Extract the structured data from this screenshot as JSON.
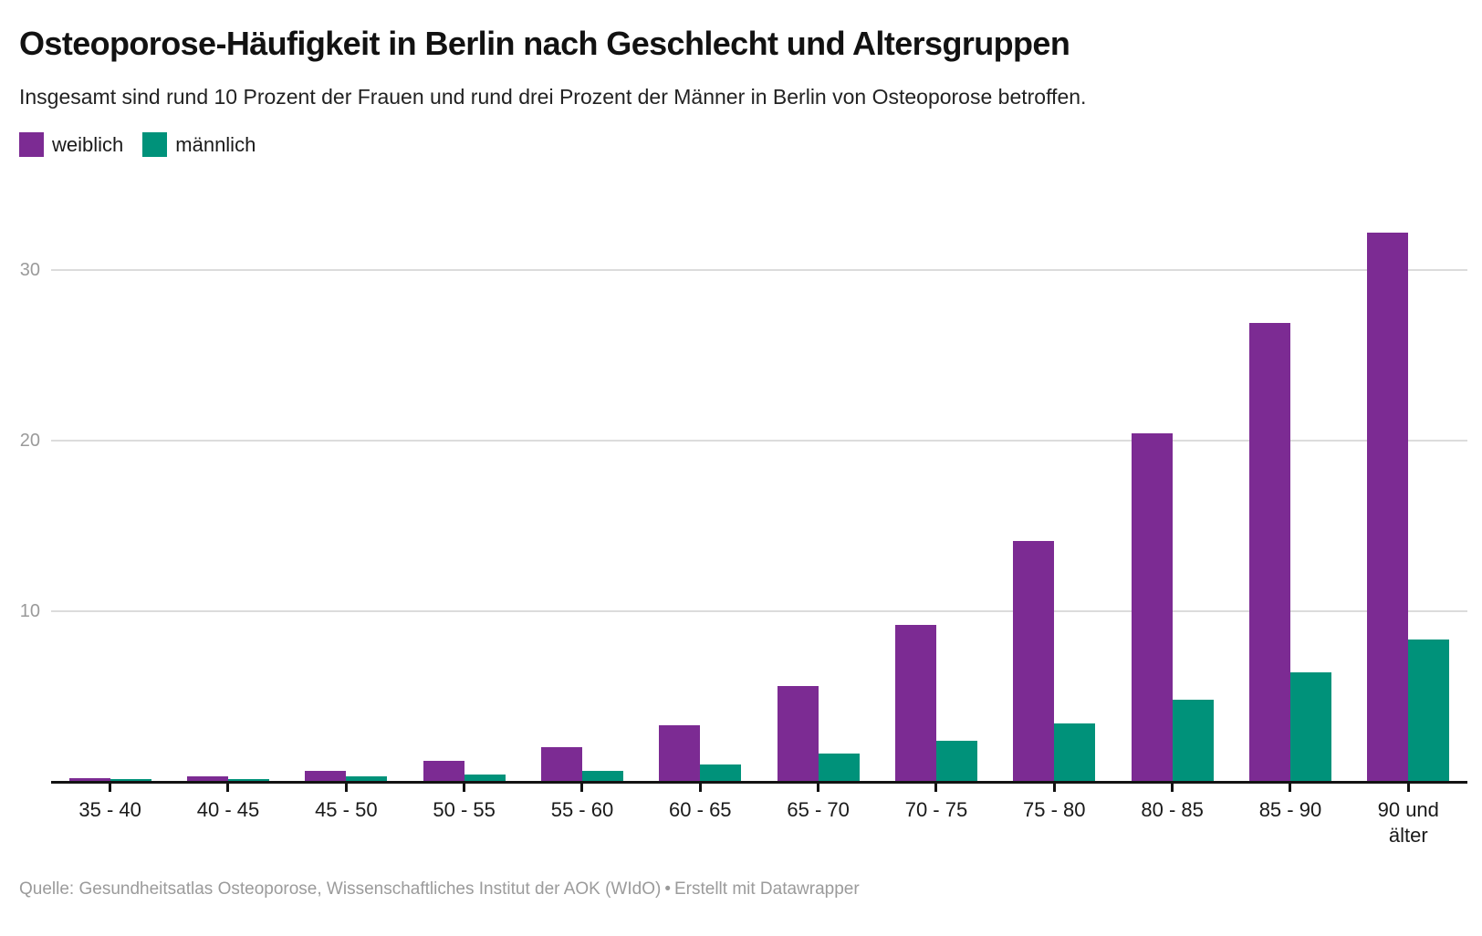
{
  "header": {
    "title": "Osteoporose-Häufigkeit in Berlin nach Geschlecht und Altersgruppen",
    "subtitle": "Insgesamt sind rund 10 Prozent der Frauen und rund drei Prozent der Männer in Berlin von Osteoporose betroffen."
  },
  "chart_data": {
    "type": "bar",
    "title": "Osteoporose-Häufigkeit in Berlin nach Geschlecht und Altersgruppen",
    "subtitle": "Insgesamt sind rund 10 Prozent der Frauen und rund drei Prozent der Männer in Berlin von Osteoporose betroffen.",
    "categories": [
      "35 - 40",
      "40 - 45",
      "45 - 50",
      "50 - 55",
      "55 - 60",
      "60 - 65",
      "65 - 70",
      "70 - 75",
      "75 - 80",
      "80 - 85",
      "85 - 90",
      "90 und älter"
    ],
    "series": [
      {
        "name": "weiblich",
        "color": "#7c2b93",
        "values": [
          0.2,
          0.3,
          0.6,
          1.2,
          2.0,
          3.3,
          5.6,
          9.2,
          14.1,
          20.4,
          26.9,
          32.2
        ]
      },
      {
        "name": "männlich",
        "color": "#00927a",
        "values": [
          0.1,
          0.15,
          0.3,
          0.4,
          0.6,
          1.0,
          1.6,
          2.4,
          3.4,
          4.8,
          6.4,
          8.3
        ]
      }
    ],
    "xlabel": "",
    "ylabel": "",
    "y_ticks": [
      10,
      20,
      30
    ],
    "ylim": [
      0,
      34.8
    ],
    "grid": "horizontal-only",
    "legend_position": "top-left",
    "bar_style": "grouped-pairs"
  },
  "footer": {
    "source": "Quelle: Gesundheitsatlas Osteoporose, Wissenschaftliches Institut der AOK (WIdO)",
    "separator": "•",
    "attribution": "Erstellt mit Datawrapper"
  }
}
